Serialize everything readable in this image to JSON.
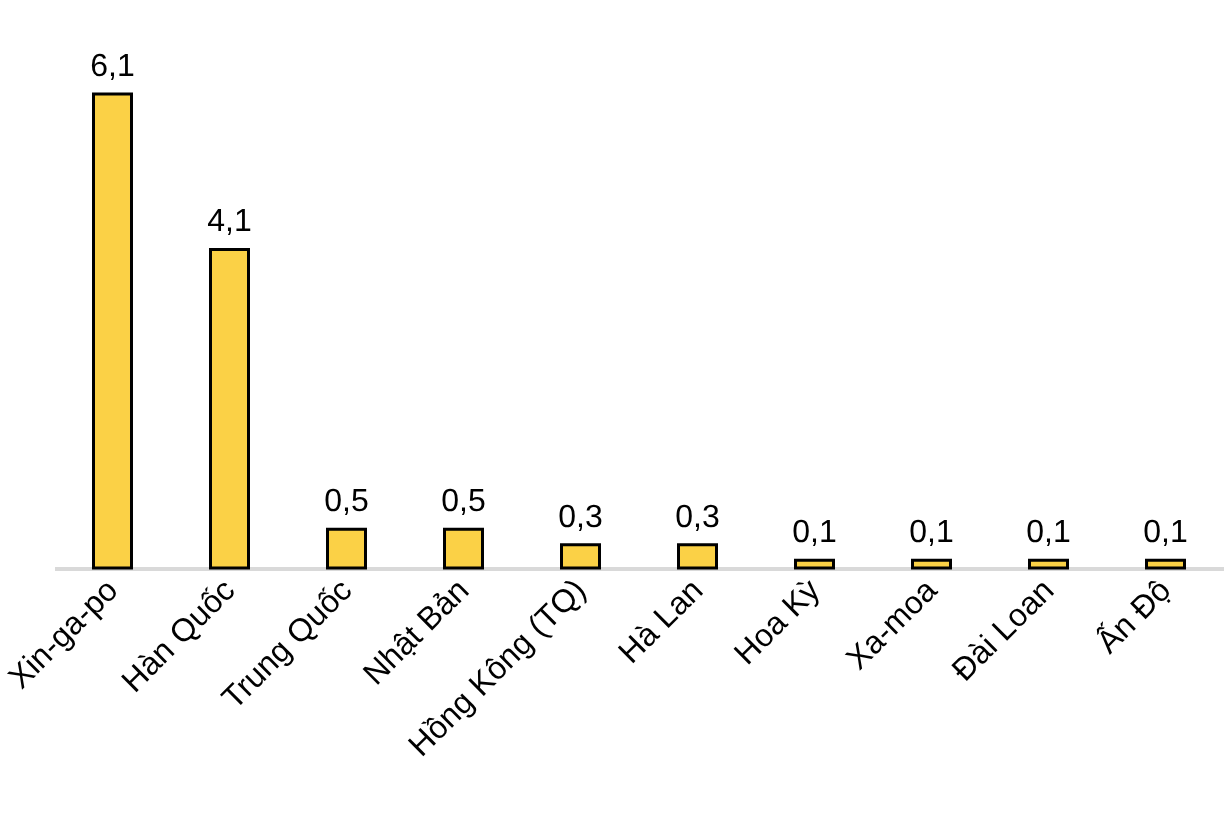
{
  "chart_data": {
    "type": "bar",
    "categories": [
      "Xin-ga-po",
      "Hàn Quốc",
      "Trung Quốc",
      "Nhật Bản",
      "Hồng Kông (TQ)",
      "Hà Lan",
      "Hoa Kỳ",
      "Xa-moa",
      "Đài Loan",
      "Ấn Độ"
    ],
    "values": [
      6.1,
      4.1,
      0.5,
      0.5,
      0.3,
      0.3,
      0.1,
      0.1,
      0.1,
      0.1
    ],
    "value_labels": [
      "6,1",
      "4,1",
      "0,5",
      "0,5",
      "0,3",
      "0,3",
      "0,1",
      "0,1",
      "0,1",
      "0,1"
    ],
    "color": "#fbd146",
    "grid": false
  }
}
